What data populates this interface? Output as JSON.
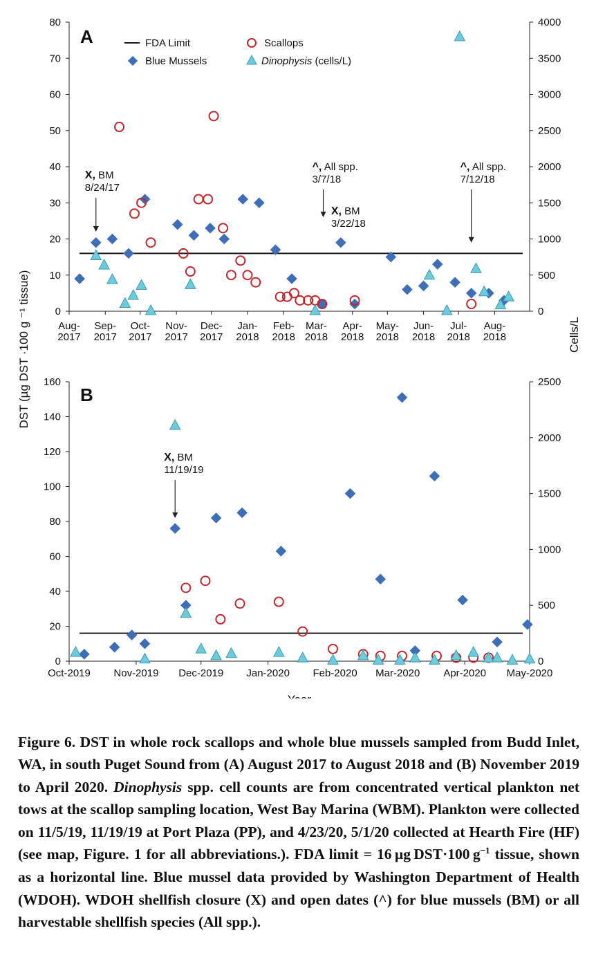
{
  "colors": {
    "blue_mussels": "#3e6fb6",
    "scallops": "#c0272d",
    "dinophysis_fill": "#6ecbd9",
    "dinophysis_stroke": "#3a9db3",
    "fda_line": "#1a1a1a"
  },
  "chart_data": [
    {
      "type": "scatter",
      "panel": "A",
      "ylabel": "DST (µg DST ·100 g ⁻¹ tissue)",
      "y2label": "Cells/L",
      "ylim": [
        0,
        80
      ],
      "yticks": [
        0,
        10,
        20,
        30,
        40,
        50,
        60,
        70,
        80
      ],
      "y2lim": [
        0,
        4000
      ],
      "y2ticks": [
        0,
        500,
        1000,
        1500,
        2000,
        2500,
        3000,
        3500,
        4000
      ],
      "xlim": [
        "2017-08-01",
        "2018-08-31"
      ],
      "xticks": [
        {
          "date": "2017-08-01",
          "label": "Aug-2017"
        },
        {
          "date": "2017-09-01",
          "label": "Sep-2017"
        },
        {
          "date": "2017-10-01",
          "label": "Oct-2017"
        },
        {
          "date": "2017-11-01",
          "label": "Nov-2017"
        },
        {
          "date": "2017-12-01",
          "label": "Dec-2017"
        },
        {
          "date": "2018-01-01",
          "label": "Jan-2018"
        },
        {
          "date": "2018-02-01",
          "label": "Feb-2018"
        },
        {
          "date": "2018-03-01",
          "label": "Mar-2018"
        },
        {
          "date": "2018-04-01",
          "label": "Apr-2018"
        },
        {
          "date": "2018-05-01",
          "label": "May-2018"
        },
        {
          "date": "2018-06-01",
          "label": "Jun-2018"
        },
        {
          "date": "2018-07-01",
          "label": "Jul-2018"
        },
        {
          "date": "2018-08-01",
          "label": "Aug-2018"
        }
      ],
      "fda_limit": 16,
      "legend": {
        "fda": "FDA Limit",
        "scallops": "Scallops",
        "mussels": "Blue Mussels",
        "dino_italic": "Dinophysis",
        "dino_rest": " (cells/L)"
      },
      "series": [
        {
          "name": "Blue Mussels",
          "axis": "left",
          "points": [
            {
              "x": "2017-08-10",
              "y": 9
            },
            {
              "x": "2017-08-24",
              "y": 19
            },
            {
              "x": "2017-09-07",
              "y": 20
            },
            {
              "x": "2017-09-21",
              "y": 16
            },
            {
              "x": "2017-10-05",
              "y": 31
            },
            {
              "x": "2017-11-02",
              "y": 24
            },
            {
              "x": "2017-11-16",
              "y": 21
            },
            {
              "x": "2017-11-30",
              "y": 23
            },
            {
              "x": "2017-12-12",
              "y": 20
            },
            {
              "x": "2017-12-28",
              "y": 31
            },
            {
              "x": "2018-01-11",
              "y": 30
            },
            {
              "x": "2018-01-25",
              "y": 17
            },
            {
              "x": "2018-02-08",
              "y": 9
            },
            {
              "x": "2018-03-06",
              "y": 2
            },
            {
              "x": "2018-03-22",
              "y": 19
            },
            {
              "x": "2018-04-03",
              "y": 2
            },
            {
              "x": "2018-05-04",
              "y": 15
            },
            {
              "x": "2018-05-18",
              "y": 6
            },
            {
              "x": "2018-06-01",
              "y": 7
            },
            {
              "x": "2018-06-13",
              "y": 13
            },
            {
              "x": "2018-06-28",
              "y": 8
            },
            {
              "x": "2018-07-12",
              "y": 5
            },
            {
              "x": "2018-07-27",
              "y": 5
            },
            {
              "x": "2018-08-09",
              "y": 3
            }
          ]
        },
        {
          "name": "Scallops",
          "axis": "left",
          "points": [
            {
              "x": "2017-09-13",
              "y": 51
            },
            {
              "x": "2017-09-26",
              "y": 27
            },
            {
              "x": "2017-10-02",
              "y": 30
            },
            {
              "x": "2017-10-10",
              "y": 19
            },
            {
              "x": "2017-11-07",
              "y": 16
            },
            {
              "x": "2017-11-13",
              "y": 11
            },
            {
              "x": "2017-11-20",
              "y": 31
            },
            {
              "x": "2017-11-28",
              "y": 31
            },
            {
              "x": "2017-12-03",
              "y": 54
            },
            {
              "x": "2017-12-11",
              "y": 23
            },
            {
              "x": "2017-12-18",
              "y": 10
            },
            {
              "x": "2017-12-26",
              "y": 14
            },
            {
              "x": "2018-01-01",
              "y": 10
            },
            {
              "x": "2018-01-08",
              "y": 8
            },
            {
              "x": "2018-01-29",
              "y": 4
            },
            {
              "x": "2018-02-04",
              "y": 4
            },
            {
              "x": "2018-02-10",
              "y": 5
            },
            {
              "x": "2018-02-15",
              "y": 3
            },
            {
              "x": "2018-02-22",
              "y": 3
            },
            {
              "x": "2018-02-28",
              "y": 3
            },
            {
              "x": "2018-03-06",
              "y": 2
            },
            {
              "x": "2018-04-03",
              "y": 3
            },
            {
              "x": "2018-07-12",
              "y": 2
            }
          ]
        },
        {
          "name": "Dinophysis (cells/L)",
          "axis": "right",
          "points": [
            {
              "x": "2017-08-24",
              "y": 770
            },
            {
              "x": "2017-08-31",
              "y": 640
            },
            {
              "x": "2017-09-07",
              "y": 440
            },
            {
              "x": "2017-09-18",
              "y": 110
            },
            {
              "x": "2017-09-25",
              "y": 220
            },
            {
              "x": "2017-10-02",
              "y": 360
            },
            {
              "x": "2017-10-10",
              "y": 10
            },
            {
              "x": "2017-11-13",
              "y": 370
            },
            {
              "x": "2018-02-28",
              "y": 10
            },
            {
              "x": "2018-06-06",
              "y": 500
            },
            {
              "x": "2018-06-21",
              "y": 10
            },
            {
              "x": "2018-07-02",
              "y": 3800
            },
            {
              "x": "2018-07-16",
              "y": 590
            },
            {
              "x": "2018-07-23",
              "y": 270
            },
            {
              "x": "2018-08-06",
              "y": 90
            },
            {
              "x": "2018-08-13",
              "y": 200
            }
          ]
        }
      ],
      "annotations": [
        {
          "symbol": "X,",
          "text": " BM",
          "date_text": "8/24/17",
          "at": "2017-08-24",
          "arrow_tip": 22
        },
        {
          "symbol": "^,",
          "text": " All spp.",
          "date_text": "3/7/18",
          "at": "2018-03-07",
          "arrow_tip": 26
        },
        {
          "symbol": "X,",
          "text": " BM",
          "date_text": "3/22/18",
          "at": "2018-03-22",
          "arrow_tip": null
        },
        {
          "symbol": "^,",
          "text": " All spp.",
          "date_text": "7/12/18",
          "at": "2018-07-12",
          "arrow_tip": 19
        }
      ]
    },
    {
      "type": "scatter",
      "panel": "B",
      "ylim": [
        0,
        160
      ],
      "yticks": [
        0,
        20,
        40,
        60,
        80,
        100,
        120,
        140,
        160
      ],
      "y2lim": [
        0,
        2500
      ],
      "y2ticks": [
        0,
        500,
        1000,
        1500,
        2000,
        2500
      ],
      "xlim": [
        "2019-10-01",
        "2020-05-01"
      ],
      "xticks": [
        {
          "date": "2019-10-01",
          "label": "Oct-2019"
        },
        {
          "date": "2019-11-01",
          "label": "Nov-2019"
        },
        {
          "date": "2019-12-01",
          "label": "Dec-2019"
        },
        {
          "date": "2020-01-01",
          "label": "Jan-2020"
        },
        {
          "date": "2020-02-01",
          "label": "Feb-2020"
        },
        {
          "date": "2020-03-01",
          "label": "Mar-2020"
        },
        {
          "date": "2020-04-01",
          "label": "Apr-2020"
        },
        {
          "date": "2020-05-01",
          "label": "May-2020"
        }
      ],
      "xlabel": "Year",
      "fda_limit": 16,
      "series": [
        {
          "name": "Blue Mussels",
          "axis": "left",
          "points": [
            {
              "x": "2019-10-08",
              "y": 4
            },
            {
              "x": "2019-10-22",
              "y": 8
            },
            {
              "x": "2019-10-30",
              "y": 15
            },
            {
              "x": "2019-11-05",
              "y": 10
            },
            {
              "x": "2019-11-19",
              "y": 76
            },
            {
              "x": "2019-11-24",
              "y": 32
            },
            {
              "x": "2019-12-08",
              "y": 82
            },
            {
              "x": "2019-12-20",
              "y": 85
            },
            {
              "x": "2020-01-07",
              "y": 63
            },
            {
              "x": "2020-02-08",
              "y": 96
            },
            {
              "x": "2020-02-22",
              "y": 47
            },
            {
              "x": "2020-03-03",
              "y": 151
            },
            {
              "x": "2020-03-09",
              "y": 6
            },
            {
              "x": "2020-03-18",
              "y": 106
            },
            {
              "x": "2020-03-31",
              "y": 35
            },
            {
              "x": "2020-04-16",
              "y": 11
            },
            {
              "x": "2020-04-30",
              "y": 21
            }
          ]
        },
        {
          "name": "Scallops",
          "axis": "left",
          "points": [
            {
              "x": "2019-11-24",
              "y": 42
            },
            {
              "x": "2019-12-03",
              "y": 46
            },
            {
              "x": "2019-12-10",
              "y": 24
            },
            {
              "x": "2019-12-19",
              "y": 33
            },
            {
              "x": "2020-01-06",
              "y": 34
            },
            {
              "x": "2020-01-17",
              "y": 17
            },
            {
              "x": "2020-01-31",
              "y": 7
            },
            {
              "x": "2020-02-14",
              "y": 4
            },
            {
              "x": "2020-02-22",
              "y": 3
            },
            {
              "x": "2020-03-03",
              "y": 3
            },
            {
              "x": "2020-03-19",
              "y": 3
            },
            {
              "x": "2020-03-28",
              "y": 2
            },
            {
              "x": "2020-04-05",
              "y": 2
            },
            {
              "x": "2020-04-12",
              "y": 2
            }
          ]
        },
        {
          "name": "Dinophysis (cells/L)",
          "axis": "right",
          "points": [
            {
              "x": "2019-10-04",
              "y": 80
            },
            {
              "x": "2019-11-05",
              "y": 20
            },
            {
              "x": "2019-11-19",
              "y": 2110
            },
            {
              "x": "2019-11-24",
              "y": 430
            },
            {
              "x": "2019-12-01",
              "y": 110
            },
            {
              "x": "2019-12-08",
              "y": 50
            },
            {
              "x": "2019-12-15",
              "y": 70
            },
            {
              "x": "2020-01-06",
              "y": 80
            },
            {
              "x": "2020-01-17",
              "y": 30
            },
            {
              "x": "2020-01-31",
              "y": 10
            },
            {
              "x": "2020-02-14",
              "y": 50
            },
            {
              "x": "2020-02-21",
              "y": 10
            },
            {
              "x": "2020-03-02",
              "y": 10
            },
            {
              "x": "2020-03-09",
              "y": 30
            },
            {
              "x": "2020-03-18",
              "y": 10
            },
            {
              "x": "2020-03-28",
              "y": 50
            },
            {
              "x": "2020-04-05",
              "y": 80
            },
            {
              "x": "2020-04-12",
              "y": 30
            },
            {
              "x": "2020-04-16",
              "y": 30
            },
            {
              "x": "2020-04-23",
              "y": 10
            },
            {
              "x": "2020-05-01",
              "y": 20
            }
          ]
        }
      ],
      "annotations": [
        {
          "symbol": "X,",
          "text": " BM",
          "date_text": "11/19/19",
          "at": "2019-11-19",
          "arrow_tip": 82
        }
      ]
    }
  ],
  "caption": {
    "fig_label": "Figure 6.",
    "part1": " DST in whole rock scallops and whole blue mussels sampled from Budd Inlet, WA, in south Puget Sound from (A) August 2017 to August 2018 and (B) November 2019 to April 2020. ",
    "italic": "Dinophysis",
    "part2": " spp. cell counts are from concentrated vertical plankton net tows at the scallop sampling location, West Bay Marina (WBM). Plankton were collected on 11/5/19, 11/19/19 at Port Plaza (PP), and 4/23/20, 5/1/20 collected at Hearth Fire (HF) (see map, Figure. 1 for all abbreviations.). FDA limit = 16 µg DST·100 g",
    "sup": "−1",
    "part3": " tissue, shown as a horizontal line. Blue mussel data provided by Washington Department of Health (WDOH). WDOH shellfish closure (X) and open dates (^) for blue mussels (BM) or all harvestable shellfish species (All spp.)."
  }
}
